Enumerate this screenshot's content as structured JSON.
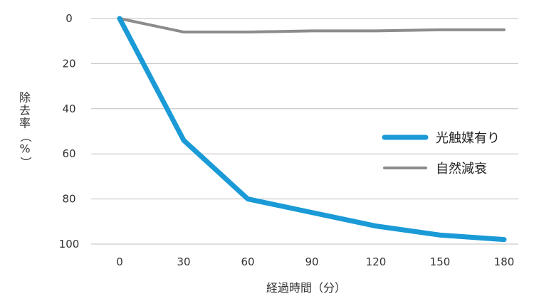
{
  "chart_data": {
    "type": "line",
    "x": [
      0,
      30,
      60,
      90,
      120,
      150,
      180
    ],
    "xticks": [
      "0",
      "30",
      "60",
      "90",
      "120",
      "150",
      "180"
    ],
    "yticks": [
      "0",
      "20",
      "40",
      "60",
      "80",
      "100"
    ],
    "ylim": [
      0,
      100
    ],
    "y_inverted": true,
    "xlabel": "経過時間（分）",
    "ylabel": "除去率（%）",
    "grid": "horizontal",
    "legend_position": "right",
    "series": [
      {
        "name": "光触媒有り",
        "color": "#1a9ad6",
        "values": [
          0,
          54,
          80,
          86,
          92,
          96,
          98
        ]
      },
      {
        "name": "自然減衰",
        "color": "#8c8c8c",
        "values": [
          0,
          6,
          6,
          5.5,
          5.5,
          5,
          5
        ]
      }
    ]
  }
}
